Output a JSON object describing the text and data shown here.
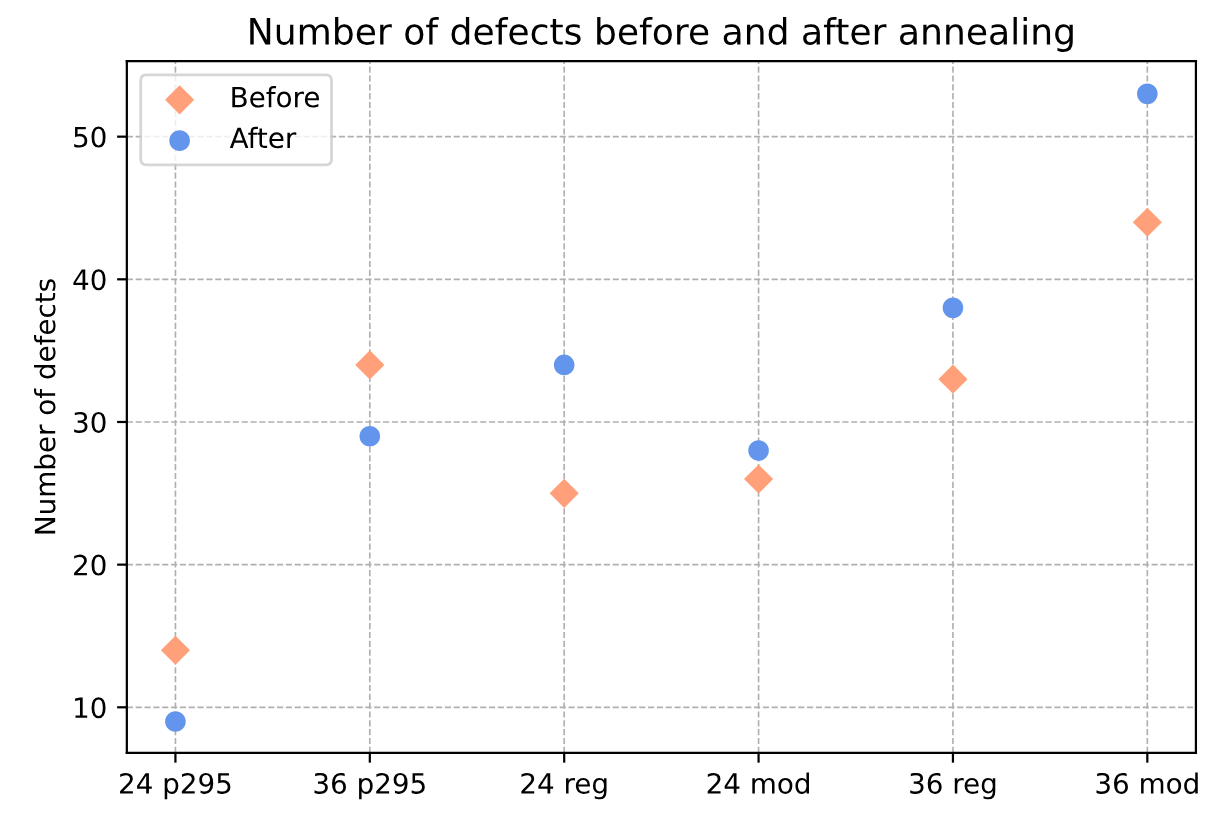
{
  "chart_data": {
    "type": "scatter",
    "title": "Number of defects before and after annealing",
    "ylabel": "Number of defects",
    "categories": [
      "24 p295",
      "36 p295",
      "24 reg",
      "24 mod",
      "36 reg",
      "36 mod"
    ],
    "series": [
      {
        "name": "Before",
        "color": "#ffa07a",
        "marker": "diamond",
        "values": [
          14,
          34,
          25,
          26,
          33,
          44
        ]
      },
      {
        "name": "After",
        "color": "#6495ed",
        "marker": "circle",
        "values": [
          9,
          29,
          34,
          28,
          38,
          53
        ]
      }
    ],
    "ylim": [
      6.8,
      55.3
    ],
    "yticks": [
      10,
      20,
      30,
      40,
      50
    ],
    "grid": true,
    "legend": "top left"
  }
}
